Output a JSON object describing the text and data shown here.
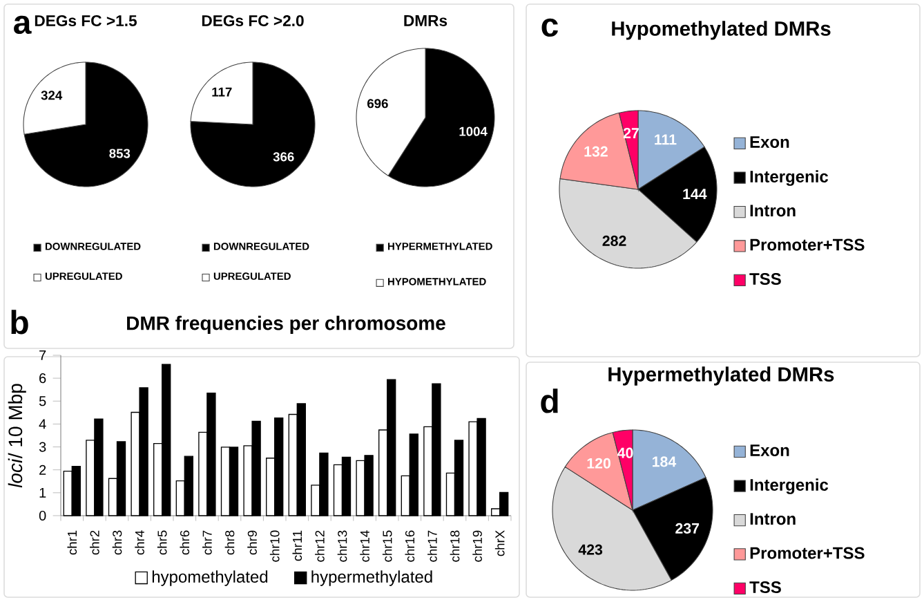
{
  "chart_data": [
    {
      "type": "pie",
      "title": "DEGs FC >1.5",
      "categories": [
        "DOWNREGULATED",
        "UPREGULATED"
      ],
      "values": [
        853,
        324
      ],
      "colors": [
        "#000000",
        "#ffffff"
      ],
      "data_labels": true,
      "legend": "bottom",
      "annotations": [
        "a"
      ]
    },
    {
      "type": "pie",
      "title": "DEGs FC >2.0",
      "categories": [
        "DOWNREGULATED",
        "UPREGULATED"
      ],
      "values": [
        366,
        117
      ],
      "colors": [
        "#000000",
        "#ffffff"
      ],
      "data_labels": true,
      "legend": "bottom"
    },
    {
      "type": "pie",
      "title": "DMRs",
      "categories": [
        "HYPERMETHYLATED",
        "HYPOMETHYLATED"
      ],
      "values": [
        1004,
        696
      ],
      "colors": [
        "#000000",
        "#ffffff"
      ],
      "data_labels": true,
      "legend": "bottom"
    },
    {
      "type": "pie",
      "title": "Hypomethylated DMRs",
      "categories": [
        "Exon",
        "Intergenic",
        "Intron",
        "Promoter+TSS",
        "TSS"
      ],
      "values": [
        111,
        144,
        282,
        132,
        27
      ],
      "colors": [
        "#95b3d7",
        "#000000",
        "#d9d9d9",
        "#ff9999",
        "#ff0066"
      ],
      "data_labels": true,
      "legend": "right",
      "annotations": [
        "c"
      ]
    },
    {
      "type": "bar",
      "title": "DMR frequencies per chromosome",
      "ylabel": "*loci*/ 10 Mbp",
      "categories": [
        "chr1",
        "chr2",
        "chr3",
        "chr4",
        "chr5",
        "chr6",
        "chr7",
        "chr8",
        "chr9",
        "chr10",
        "chr11",
        "chr12",
        "chr13",
        "chr14",
        "chr15",
        "chr16",
        "chr17",
        "chr18",
        "chr19",
        "chrX"
      ],
      "series": [
        {
          "name": "hypomethylated",
          "color": "#ffffff",
          "values": [
            1.94,
            3.29,
            1.62,
            4.51,
            3.15,
            1.52,
            3.64,
            2.99,
            3.05,
            2.51,
            4.42,
            1.33,
            2.22,
            2.4,
            3.74,
            1.74,
            3.88,
            1.86,
            4.1,
            0.3
          ]
        },
        {
          "name": "hypermethylated",
          "color": "#000000",
          "values": [
            2.15,
            4.22,
            3.23,
            5.58,
            6.6,
            2.59,
            5.35,
            2.99,
            4.12,
            4.26,
            4.89,
            2.73,
            2.55,
            2.63,
            5.94,
            3.56,
            5.76,
            3.29,
            4.24,
            1.01
          ]
        }
      ],
      "ylim": [
        0,
        7
      ],
      "yticks": [
        0,
        1,
        2,
        3,
        4,
        5,
        6,
        7
      ],
      "legend": "bottom",
      "annotations": [
        "b"
      ]
    },
    {
      "type": "pie",
      "title": "Hypermethylated DMRs",
      "categories": [
        "Exon",
        "Intergenic",
        "Intron",
        "Promoter+TSS",
        "TSS"
      ],
      "values": [
        184,
        237,
        423,
        120,
        40
      ],
      "colors": [
        "#95b3d7",
        "#000000",
        "#d9d9d9",
        "#ff9999",
        "#ff0066"
      ],
      "data_labels": true,
      "legend": "right",
      "annotations": [
        "d"
      ]
    }
  ]
}
